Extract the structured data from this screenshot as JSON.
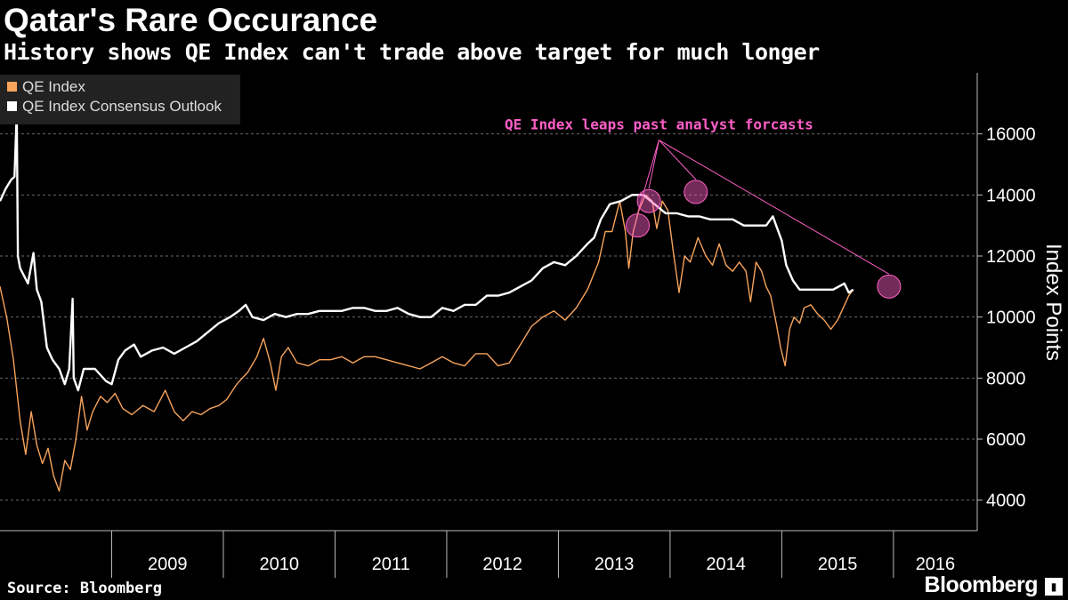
{
  "header": {
    "title": "Qatar's Rare Occurance",
    "subtitle": "History shows QE Index can't trade above target for much longer"
  },
  "footer": {
    "source": "Source: Bloomberg",
    "brand": "Bloomberg",
    "brand_icon": "bloomberg-terminal-icon"
  },
  "colors": {
    "background": "#000000",
    "qe_index": "#f7a35c",
    "consensus": "#ffffff",
    "annotation": "#ff5fc8",
    "grid": "#6a6a6a"
  },
  "chart_data": {
    "type": "line",
    "title": "Qatar's Rare Occurance",
    "subtitle": "History shows QE Index can't trade above target for much longer",
    "ylabel": "Index Points",
    "ylim": [
      3000,
      18000
    ],
    "xlim": [
      2008.0,
      2016.75
    ],
    "x_tick_labels": [
      "2009",
      "2010",
      "2011",
      "2012",
      "2013",
      "2014",
      "2015",
      "2016"
    ],
    "y_ticks": [
      4000,
      6000,
      8000,
      10000,
      12000,
      14000,
      16000
    ],
    "grid": "horizontal dashed",
    "legend": "top-left",
    "series": [
      {
        "name": "QE Index",
        "color": "#f7a35c",
        "points": [
          [
            2008.0,
            11000
          ],
          [
            2008.06,
            10000
          ],
          [
            2008.12,
            8600
          ],
          [
            2008.18,
            6600
          ],
          [
            2008.23,
            5500
          ],
          [
            2008.28,
            6900
          ],
          [
            2008.33,
            5800
          ],
          [
            2008.38,
            5200
          ],
          [
            2008.43,
            5700
          ],
          [
            2008.48,
            4800
          ],
          [
            2008.53,
            4300
          ],
          [
            2008.58,
            5300
          ],
          [
            2008.63,
            5000
          ],
          [
            2008.68,
            6000
          ],
          [
            2008.73,
            7400
          ],
          [
            2008.78,
            6300
          ],
          [
            2008.83,
            6900
          ],
          [
            2008.9,
            7400
          ],
          [
            2008.96,
            7200
          ],
          [
            2009.03,
            7500
          ],
          [
            2009.1,
            7000
          ],
          [
            2009.18,
            6800
          ],
          [
            2009.28,
            7100
          ],
          [
            2009.38,
            6900
          ],
          [
            2009.48,
            7600
          ],
          [
            2009.56,
            6900
          ],
          [
            2009.64,
            6600
          ],
          [
            2009.72,
            6900
          ],
          [
            2009.8,
            6800
          ],
          [
            2009.88,
            7000
          ],
          [
            2009.96,
            7100
          ],
          [
            2010.03,
            7300
          ],
          [
            2010.12,
            7800
          ],
          [
            2010.22,
            8200
          ],
          [
            2010.3,
            8700
          ],
          [
            2010.36,
            9300
          ],
          [
            2010.42,
            8500
          ],
          [
            2010.47,
            7600
          ],
          [
            2010.52,
            8700
          ],
          [
            2010.58,
            9000
          ],
          [
            2010.66,
            8500
          ],
          [
            2010.76,
            8400
          ],
          [
            2010.86,
            8600
          ],
          [
            2010.96,
            8600
          ],
          [
            2011.06,
            8700
          ],
          [
            2011.16,
            8500
          ],
          [
            2011.26,
            8700
          ],
          [
            2011.36,
            8700
          ],
          [
            2011.46,
            8600
          ],
          [
            2011.56,
            8500
          ],
          [
            2011.66,
            8400
          ],
          [
            2011.76,
            8300
          ],
          [
            2011.86,
            8500
          ],
          [
            2011.96,
            8700
          ],
          [
            2012.06,
            8500
          ],
          [
            2012.16,
            8400
          ],
          [
            2012.26,
            8800
          ],
          [
            2012.36,
            8800
          ],
          [
            2012.46,
            8400
          ],
          [
            2012.56,
            8500
          ],
          [
            2012.66,
            9100
          ],
          [
            2012.76,
            9700
          ],
          [
            2012.86,
            10000
          ],
          [
            2012.96,
            10200
          ],
          [
            2013.06,
            9900
          ],
          [
            2013.16,
            10300
          ],
          [
            2013.26,
            10900
          ],
          [
            2013.36,
            11800
          ],
          [
            2013.42,
            12800
          ],
          [
            2013.48,
            12800
          ],
          [
            2013.55,
            13800
          ],
          [
            2013.6,
            12800
          ],
          [
            2013.63,
            11600
          ],
          [
            2013.67,
            12800
          ],
          [
            2013.72,
            13500
          ],
          [
            2013.78,
            14000
          ],
          [
            2013.84,
            13800
          ],
          [
            2013.88,
            12900
          ],
          [
            2013.93,
            13800
          ],
          [
            2013.98,
            13500
          ],
          [
            2014.03,
            12100
          ],
          [
            2014.08,
            10800
          ],
          [
            2014.13,
            12000
          ],
          [
            2014.18,
            11800
          ],
          [
            2014.25,
            12600
          ],
          [
            2014.32,
            12000
          ],
          [
            2014.38,
            11700
          ],
          [
            2014.44,
            12400
          ],
          [
            2014.5,
            11700
          ],
          [
            2014.56,
            11500
          ],
          [
            2014.62,
            11800
          ],
          [
            2014.68,
            11500
          ],
          [
            2014.72,
            10500
          ],
          [
            2014.77,
            11800
          ],
          [
            2014.82,
            11500
          ],
          [
            2014.86,
            11000
          ],
          [
            2014.9,
            10700
          ],
          [
            2014.95,
            9800
          ],
          [
            2014.99,
            9000
          ],
          [
            2015.03,
            8400
          ],
          [
            2015.07,
            9600
          ],
          [
            2015.11,
            10000
          ],
          [
            2015.16,
            9800
          ],
          [
            2015.2,
            10300
          ],
          [
            2015.26,
            10400
          ],
          [
            2015.32,
            10100
          ],
          [
            2015.38,
            9900
          ],
          [
            2015.44,
            9600
          ],
          [
            2015.5,
            9900
          ],
          [
            2015.55,
            10300
          ],
          [
            2015.6,
            10700
          ],
          [
            2015.64,
            10900
          ]
        ]
      },
      {
        "name": "QE Index Consensus Outlook",
        "color": "#ffffff",
        "points": [
          [
            2008.0,
            13800
          ],
          [
            2008.05,
            14200
          ],
          [
            2008.1,
            14500
          ],
          [
            2008.13,
            14600
          ],
          [
            2008.15,
            16700
          ],
          [
            2008.16,
            12000
          ],
          [
            2008.18,
            11600
          ],
          [
            2008.25,
            11100
          ],
          [
            2008.3,
            12100
          ],
          [
            2008.33,
            10900
          ],
          [
            2008.37,
            10500
          ],
          [
            2008.42,
            9000
          ],
          [
            2008.47,
            8600
          ],
          [
            2008.53,
            8300
          ],
          [
            2008.58,
            7800
          ],
          [
            2008.62,
            8300
          ],
          [
            2008.65,
            10600
          ],
          [
            2008.66,
            8000
          ],
          [
            2008.7,
            7600
          ],
          [
            2008.75,
            8300
          ],
          [
            2008.85,
            8300
          ],
          [
            2008.95,
            7900
          ],
          [
            2009.0,
            7800
          ],
          [
            2009.06,
            8600
          ],
          [
            2009.12,
            8900
          ],
          [
            2009.2,
            9100
          ],
          [
            2009.26,
            8700
          ],
          [
            2009.36,
            8900
          ],
          [
            2009.46,
            9000
          ],
          [
            2009.56,
            8800
          ],
          [
            2009.66,
            9000
          ],
          [
            2009.76,
            9200
          ],
          [
            2009.86,
            9500
          ],
          [
            2009.96,
            9800
          ],
          [
            2010.06,
            10000
          ],
          [
            2010.14,
            10200
          ],
          [
            2010.2,
            10400
          ],
          [
            2010.26,
            10000
          ],
          [
            2010.36,
            9900
          ],
          [
            2010.46,
            10100
          ],
          [
            2010.56,
            10000
          ],
          [
            2010.66,
            10100
          ],
          [
            2010.76,
            10100
          ],
          [
            2010.86,
            10200
          ],
          [
            2010.96,
            10200
          ],
          [
            2011.06,
            10200
          ],
          [
            2011.16,
            10300
          ],
          [
            2011.26,
            10300
          ],
          [
            2011.36,
            10200
          ],
          [
            2011.46,
            10200
          ],
          [
            2011.56,
            10300
          ],
          [
            2011.66,
            10100
          ],
          [
            2011.76,
            10000
          ],
          [
            2011.86,
            10000
          ],
          [
            2011.96,
            10300
          ],
          [
            2012.06,
            10200
          ],
          [
            2012.16,
            10400
          ],
          [
            2012.26,
            10400
          ],
          [
            2012.36,
            10700
          ],
          [
            2012.46,
            10700
          ],
          [
            2012.56,
            10800
          ],
          [
            2012.66,
            11000
          ],
          [
            2012.76,
            11200
          ],
          [
            2012.86,
            11600
          ],
          [
            2012.96,
            11800
          ],
          [
            2013.06,
            11700
          ],
          [
            2013.16,
            12000
          ],
          [
            2013.26,
            12400
          ],
          [
            2013.32,
            12600
          ],
          [
            2013.38,
            13200
          ],
          [
            2013.46,
            13700
          ],
          [
            2013.56,
            13800
          ],
          [
            2013.66,
            14000
          ],
          [
            2013.76,
            14000
          ],
          [
            2013.86,
            13700
          ],
          [
            2013.96,
            13400
          ],
          [
            2014.06,
            13400
          ],
          [
            2014.16,
            13300
          ],
          [
            2014.26,
            13300
          ],
          [
            2014.36,
            13200
          ],
          [
            2014.46,
            13200
          ],
          [
            2014.56,
            13200
          ],
          [
            2014.66,
            13000
          ],
          [
            2014.76,
            13000
          ],
          [
            2014.86,
            13000
          ],
          [
            2014.92,
            13300
          ],
          [
            2014.95,
            13000
          ],
          [
            2015.0,
            12500
          ],
          [
            2015.04,
            11700
          ],
          [
            2015.1,
            11200
          ],
          [
            2015.16,
            10900
          ],
          [
            2015.26,
            10900
          ],
          [
            2015.36,
            10900
          ],
          [
            2015.46,
            10900
          ],
          [
            2015.56,
            11100
          ],
          [
            2015.6,
            10800
          ],
          [
            2015.64,
            10900
          ]
        ]
      }
    ],
    "annotations": [
      {
        "text": "QE Index leaps past analyst forcasts",
        "color": "#ff5fc8",
        "label_point": [
          2013.9,
          15800
        ],
        "markers": [
          [
            2013.71,
            13000
          ],
          [
            2013.81,
            13800
          ],
          [
            2014.23,
            14100
          ],
          [
            2015.96,
            11000
          ]
        ]
      }
    ]
  }
}
